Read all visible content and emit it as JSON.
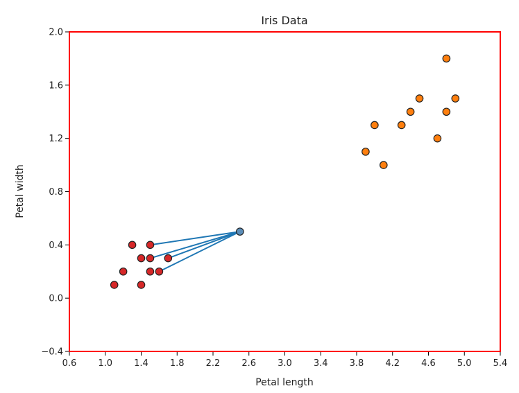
{
  "chart_data": {
    "type": "scatter",
    "title": "Iris Data",
    "xlabel": "Petal length",
    "ylabel": "Petal width",
    "xlim": [
      0.6,
      5.4
    ],
    "ylim": [
      -0.4,
      2.0
    ],
    "xticks": [
      0.6,
      1.0,
      1.4,
      1.8,
      2.2,
      2.6,
      3.0,
      3.4,
      3.8,
      4.2,
      4.6,
      5.0,
      5.4
    ],
    "yticks": [
      -0.4,
      0.0,
      0.4,
      0.8,
      1.2,
      1.6,
      2.0
    ],
    "grid": false,
    "colors": {
      "frame": "#ff0000",
      "class_a": "#d62728",
      "class_b": "#ff7f0e",
      "query": "#5b8db8",
      "neighbor_lines": "#1f77b4",
      "marker_edge": "#222222"
    },
    "series": [
      {
        "color_key": "class_a",
        "points": [
          [
            1.1,
            0.1
          ],
          [
            1.2,
            0.2
          ],
          [
            1.3,
            0.4
          ],
          [
            1.4,
            0.1
          ],
          [
            1.4,
            0.3
          ],
          [
            1.5,
            0.2
          ],
          [
            1.5,
            0.3
          ],
          [
            1.5,
            0.4
          ],
          [
            1.6,
            0.2
          ],
          [
            1.7,
            0.3
          ]
        ]
      },
      {
        "color_key": "class_b",
        "points": [
          [
            3.9,
            1.1
          ],
          [
            4.0,
            1.3
          ],
          [
            4.1,
            1.0
          ],
          [
            4.3,
            1.3
          ],
          [
            4.4,
            1.4
          ],
          [
            4.5,
            1.5
          ],
          [
            4.7,
            1.2
          ],
          [
            4.8,
            1.4
          ],
          [
            4.8,
            1.8
          ],
          [
            4.9,
            1.5
          ]
        ]
      }
    ],
    "query_point": [
      2.5,
      0.5
    ],
    "neighbors": [
      [
        1.5,
        0.4
      ],
      [
        1.5,
        0.3
      ],
      [
        1.7,
        0.3
      ],
      [
        1.6,
        0.2
      ]
    ]
  }
}
